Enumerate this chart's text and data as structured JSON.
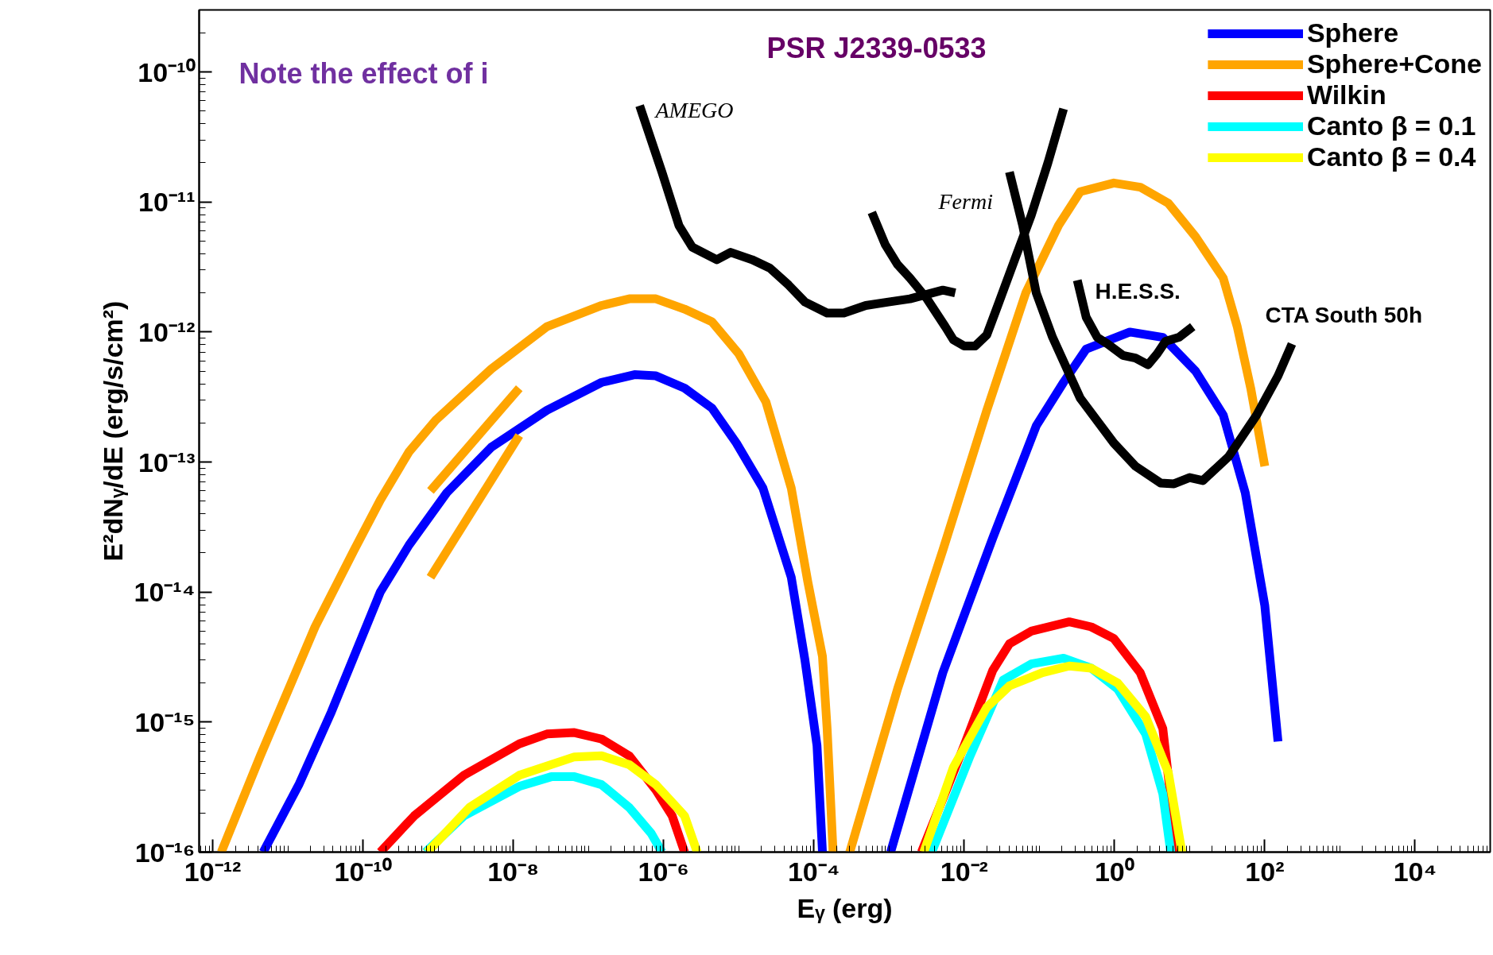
{
  "chart_data": {
    "type": "line",
    "xlabel": "Eᵧ (erg)",
    "ylabel": "E²dNᵧ/dE (erg/s/cm²)",
    "log": "xy",
    "grid": false,
    "legend": "top right",
    "line_style": "solid",
    "marker": "none",
    "xlim": [
      6.6e-13,
      100000.0
    ],
    "ylim": [
      1e-16,
      3e-10
    ],
    "xticks": [
      {
        "value": 1e-12,
        "label": "10⁻¹²"
      },
      {
        "value": 1e-10,
        "label": "10⁻¹⁰"
      },
      {
        "value": 1e-08,
        "label": "10⁻⁸"
      },
      {
        "value": 1e-06,
        "label": "10⁻⁶"
      },
      {
        "value": 0.0001,
        "label": "10⁻⁴"
      },
      {
        "value": 0.01,
        "label": "10⁻²"
      },
      {
        "value": 1,
        "label": "10⁰"
      },
      {
        "value": 100,
        "label": "10²"
      },
      {
        "value": 10000,
        "label": "10⁴"
      }
    ],
    "yticks": [
      {
        "value": 1e-16,
        "label": "10⁻¹⁶"
      },
      {
        "value": 1e-15,
        "label": "10⁻¹⁵"
      },
      {
        "value": 1e-14,
        "label": "10⁻¹⁴"
      },
      {
        "value": 1e-13,
        "label": "10⁻¹³"
      },
      {
        "value": 1e-12,
        "label": "10⁻¹²"
      },
      {
        "value": 1e-11,
        "label": "10⁻¹¹"
      },
      {
        "value": 1e-10,
        "label": "10⁻¹⁰"
      }
    ],
    "series": [
      {
        "name": "Sphere",
        "color": "#0000ff",
        "x": [
          4.7e-12,
          1.4e-11,
          3.8e-11,
          1.7e-10,
          4.1e-10,
          1.3e-09,
          5.1e-09,
          2.8e-08,
          1.5e-07,
          4.1e-07,
          7.9e-07,
          1.9e-06,
          4.4e-06,
          9.3e-06,
          2.1e-05,
          5e-05,
          7.6e-05,
          0.00011,
          0.00013,
          0.0004,
          0.00105,
          0.0052,
          0.024,
          0.091,
          0.21,
          0.42,
          1.6,
          4.4,
          12,
          28,
          55,
          100,
          150
        ],
        "values": [
          1e-16,
          3.3e-16,
          1.2e-15,
          1e-14,
          2.3e-14,
          5.8e-14,
          1.3e-13,
          2.5e-13,
          4.1e-13,
          4.7e-13,
          4.6e-13,
          3.7e-13,
          2.6e-13,
          1.4e-13,
          6.3e-14,
          1.3e-14,
          3e-15,
          6.6e-16,
          1e-16,
          null,
          1e-16,
          2.4e-15,
          2.6e-14,
          1.9e-13,
          4.1e-13,
          7.4e-13,
          1e-12,
          9.1e-13,
          5e-13,
          2.3e-13,
          5.8e-14,
          7.9e-15,
          7.1e-16
        ]
      },
      {
        "name": "Sphere+Cone",
        "color": "#ffa500",
        "x": [
          1.3e-12,
          4.3e-12,
          2.3e-11,
          7.6e-11,
          1.7e-10,
          4.1e-10,
          9.3e-10,
          5.1e-09,
          2.8e-08,
          1.5e-07,
          3.5e-07,
          7.9e-07,
          1.9e-06,
          4.4e-06,
          1e-05,
          2.3e-05,
          5e-05,
          8.3e-05,
          0.00013,
          0.00015,
          0.00018,
          0.00024,
          0.0003,
          0.0013,
          0.0052,
          0.02,
          0.066,
          0.18,
          0.35,
          0.98,
          2.2,
          5.2,
          12,
          28,
          43,
          65,
          100
        ],
        "values": [
          1e-16,
          5.5e-16,
          5.4e-15,
          2.1e-14,
          5.1e-14,
          1.2e-13,
          2.1e-13,
          5.2e-13,
          1.1e-12,
          1.6e-12,
          1.8e-12,
          1.8e-12,
          1.5e-12,
          1.2e-12,
          6.8e-13,
          2.9e-13,
          6.3e-14,
          1.2e-14,
          3.2e-15,
          8.9e-16,
          1e-16,
          null,
          1e-16,
          1.8e-15,
          2.1e-14,
          2.5e-13,
          2e-12,
          6.6e-12,
          1.2e-11,
          1.4e-11,
          1.3e-11,
          9.8e-12,
          5.4e-12,
          2.6e-12,
          1.1e-12,
          3.7e-13,
          9.3e-14
        ]
      },
      {
        "name": "Wilkin",
        "color": "#ff0000",
        "x": [
          1.7e-10,
          4.8e-10,
          2.2e-09,
          1.2e-08,
          2.8e-08,
          6.5e-08,
          1.5e-07,
          3.5e-07,
          7.9e-07,
          1.3e-06,
          1.9e-06,
          0.0003,
          0.0027,
          0.01,
          0.024,
          0.04,
          0.078,
          0.25,
          0.49,
          0.98,
          2.2,
          4.4,
          6.8
        ],
        "values": [
          1e-16,
          1.9e-16,
          3.9e-16,
          6.8e-16,
          8.1e-16,
          8.3e-16,
          7.4e-16,
          5.5e-16,
          3e-16,
          1.9e-16,
          1e-16,
          null,
          1e-16,
          6.6e-16,
          2.5e-15,
          4e-15,
          5e-15,
          5.9e-15,
          5.4e-15,
          4.4e-15,
          2.4e-15,
          8.9e-16,
          1e-16
        ]
      },
      {
        "name": "Canto β = 0.1",
        "color": "#00ffff",
        "x": [
          6.8e-10,
          2.2e-09,
          1.2e-08,
          3.2e-08,
          6.5e-08,
          1.5e-07,
          3.5e-07,
          6.8e-07,
          9.5e-07,
          0.0003,
          0.0037,
          0.012,
          0.033,
          0.078,
          0.21,
          0.49,
          1.1,
          2.6,
          4.4,
          5.6
        ],
        "values": [
          1e-16,
          1.9e-16,
          3.2e-16,
          3.8e-16,
          3.8e-16,
          3.3e-16,
          2.2e-16,
          1.4e-16,
          1e-16,
          null,
          1e-16,
          5.5e-16,
          2.1e-15,
          2.8e-15,
          3.1e-15,
          2.6e-15,
          1.8e-15,
          8.1e-16,
          2.8e-16,
          1e-16
        ]
      },
      {
        "name": "Canto β = 0.4",
        "color": "#ffff00",
        "x": [
          7.2e-10,
          2.6e-09,
          1.2e-08,
          6.5e-08,
          1.5e-07,
          3.5e-07,
          7.9e-07,
          1.9e-06,
          2.8e-06,
          0.0003,
          0.0029,
          0.0072,
          0.02,
          0.04,
          0.11,
          0.25,
          0.49,
          1.1,
          2.6,
          5.2,
          7.9
        ],
        "values": [
          1e-16,
          2.2e-16,
          3.9e-16,
          5.4e-16,
          5.5e-16,
          4.7e-16,
          3.3e-16,
          1.9e-16,
          1e-16,
          null,
          1e-16,
          4.5e-16,
          1.3e-15,
          1.9e-15,
          2.4e-15,
          2.7e-15,
          2.6e-15,
          2e-15,
          1.1e-15,
          4.1e-16,
          1e-16
        ]
      },
      {
        "color": "#ffa500",
        "x": [
          7.9e-10,
          1.2e-08
        ],
        "values": [
          6e-14,
          3.7e-13
        ]
      },
      {
        "color": "#ffa500",
        "x": [
          7.9e-10,
          1.2e-08
        ],
        "values": [
          1.3e-14,
          1.6e-13
        ]
      },
      {
        "color": "#000000",
        "x": [
          4.8e-07,
          9.5e-07,
          1.6e-06,
          2.4e-06,
          5.1e-06,
          7.8e-06,
          1.5e-05,
          2.6e-05,
          4.6e-05,
          7.6e-05,
          0.00015,
          0.00025,
          0.00049,
          0.00098,
          0.0019,
          0.0052,
          0.0076
        ],
        "values": [
          5.5e-11,
          1.7e-11,
          6.6e-12,
          4.5e-12,
          3.6e-12,
          4.1e-12,
          3.6e-12,
          3.1e-12,
          2.3e-12,
          1.7e-12,
          1.4e-12,
          1.4e-12,
          1.6e-12,
          1.7e-12,
          1.8e-12,
          2.1e-12,
          2e-12
        ]
      },
      {
        "color": "#000000",
        "x": [
          0.00059,
          0.00089,
          0.0013,
          0.0019,
          0.0032,
          0.0056,
          0.0072,
          0.01,
          0.014,
          0.02,
          0.028,
          0.047,
          0.078,
          0.13,
          0.21
        ],
        "values": [
          8.3e-12,
          4.7e-12,
          3.3e-12,
          2.6e-12,
          1.8e-12,
          1.1e-12,
          8.7e-13,
          7.8e-13,
          7.8e-13,
          9.5e-13,
          1.6e-12,
          3.6e-12,
          7.9e-12,
          2e-11,
          5.2e-11
        ]
      },
      {
        "color": "#000000",
        "x": [
          0.32,
          0.42,
          0.59,
          0.81,
          1.3,
          1.9,
          2.8,
          3.7,
          4.8,
          7.2,
          11
        ],
        "values": [
          2.5e-12,
          1.3e-12,
          9.1e-13,
          8.1e-13,
          6.6e-13,
          6.3e-13,
          5.6e-13,
          6.8e-13,
          8.5e-13,
          9.1e-13,
          1.1e-12
        ]
      },
      {
        "color": "#000000",
        "x": [
          0.04,
          0.06,
          0.091,
          0.15,
          0.35,
          0.98,
          1.9,
          4.1,
          6.2,
          10,
          15,
          33,
          78,
          150,
          230
        ],
        "values": [
          1.7e-11,
          6.6e-12,
          2e-12,
          9.1e-13,
          3.1e-13,
          1.4e-13,
          9.3e-14,
          6.9e-14,
          6.8e-14,
          7.6e-14,
          7.2e-14,
          1.1e-13,
          2.3e-13,
          4.6e-13,
          8.1e-13
        ]
      }
    ],
    "annotations": [
      "Note the effect of i",
      "PSR J2339-0533",
      "AMEGO",
      "Fermi",
      "H.E.S.S.",
      "CTA South 50h"
    ]
  }
}
